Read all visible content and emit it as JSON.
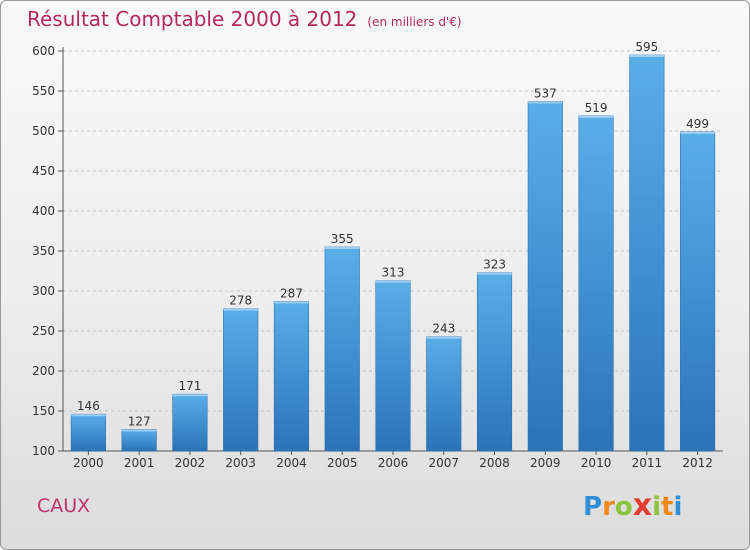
{
  "chart_data": {
    "type": "bar",
    "title": "Résultat Comptable 2000 à 2012",
    "subtitle": "(en milliers d'€)",
    "categories": [
      "2000",
      "2001",
      "2002",
      "2003",
      "2004",
      "2005",
      "2006",
      "2007",
      "2008",
      "2009",
      "2010",
      "2011",
      "2012"
    ],
    "values": [
      146,
      127,
      171,
      278,
      287,
      355,
      313,
      243,
      323,
      537,
      519,
      595,
      499
    ],
    "ylim": [
      100,
      600
    ],
    "yticks": [
      100,
      150,
      200,
      250,
      300,
      350,
      400,
      450,
      500,
      550,
      600
    ],
    "grid": true,
    "xlabel": "",
    "ylabel": "",
    "bar_color": "#3f93d8",
    "bar_color_light": "#5aaee8",
    "bar_color_dark": "#2a73b8"
  },
  "header": {
    "title": "Résultat Comptable 2000 à 2012",
    "subtitle": "(en milliers d'€)"
  },
  "footer": {
    "place": "CAUX",
    "logo_letters": [
      "P",
      "r",
      "o",
      "x",
      "i",
      "t",
      "i"
    ],
    "logo_colors": [
      "#2f8fd6",
      "#f08a1c",
      "#8cc43f",
      "#e23c33",
      "#8cc43f",
      "#f08a1c",
      "#2f8fd6"
    ]
  }
}
